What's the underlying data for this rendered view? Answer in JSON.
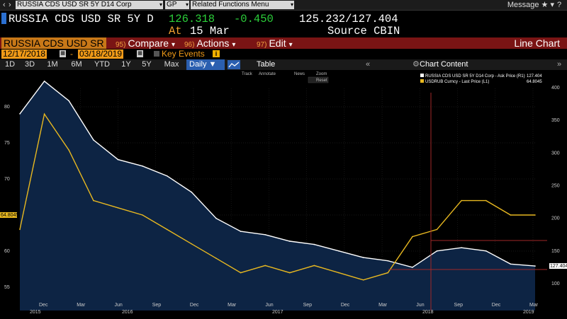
{
  "command_bar": {
    "security": "RUSSIA CDS USD SR 5Y D14 Corp",
    "pricing_source": "GP",
    "related": "Related Functions Menu",
    "message": "Message"
  },
  "quote": {
    "ticker": "RUSSIA CDS USD SR 5Y D",
    "last": "126.318",
    "change": "-0.450",
    "range": "125.232/127.404",
    "at_label": "At",
    "date": "15 Mar",
    "source": "Source CBIN"
  },
  "action_bar": {
    "name": "RUSSIA CDS USD SR",
    "compare_num": "95)",
    "compare": "Compare",
    "actions_num": "96)",
    "actions": "Actions",
    "edit_num": "97)",
    "edit": "Edit",
    "view": "Line Chart"
  },
  "dates": {
    "start": "12/17/2018",
    "end": "03/18/2019",
    "separator": "-",
    "key_events": "Key Events"
  },
  "ranges": [
    "1D",
    "3D",
    "1M",
    "6M",
    "YTD",
    "1Y",
    "5Y",
    "Max"
  ],
  "frequency": "Daily",
  "table_tab": "Table",
  "chart_content": "Chart Content",
  "tools": {
    "track": "Track",
    "annotate": "Annotate",
    "news": "News",
    "zoom": "Zoom",
    "reset": "Reset"
  },
  "colors": {
    "cds": "#ffffff",
    "fx": "#e8b820",
    "area": "#0d2444",
    "cursor": "#c03030"
  },
  "chart_data": {
    "type": "line",
    "x": [
      "2015-10",
      "2015-12",
      "2016-02",
      "2016-04",
      "2016-06",
      "2016-08",
      "2016-10",
      "2016-12",
      "2017-02",
      "2017-04",
      "2017-06",
      "2017-08",
      "2017-10",
      "2017-12",
      "2018-02",
      "2018-04",
      "2018-06",
      "2018-08",
      "2018-10",
      "2018-12",
      "2019-02",
      "2019-03"
    ],
    "series": [
      {
        "name": "RUSSIA CDS USD SR 5Y D14 Corp - Ask Price (R1)",
        "last": "127.404",
        "axis": "right",
        "values": [
          360,
          410,
          380,
          320,
          290,
          280,
          265,
          240,
          200,
          180,
          175,
          165,
          160,
          150,
          140,
          135,
          125,
          150,
          155,
          150,
          130,
          127
        ]
      },
      {
        "name": "USDRUB Curncy - Last Price (L1)",
        "last": "64.8045",
        "axis": "left",
        "values": [
          63,
          79,
          74,
          67,
          66,
          65,
          63,
          61,
          59,
          57,
          58,
          57,
          58,
          57,
          56,
          57,
          62,
          63,
          67,
          67,
          65,
          65
        ]
      }
    ],
    "left_axis": {
      "ticks": [
        55,
        60,
        65,
        70,
        75,
        80
      ],
      "current_label": "64.8045"
    },
    "right_axis": {
      "ticks": [
        100,
        150,
        200,
        250,
        300,
        350,
        400
      ],
      "current_label": "127.404"
    },
    "x_tick_labels": [
      "Dec",
      "Mar",
      "Jun",
      "Sep",
      "Dec",
      "Mar",
      "Jun",
      "Sep",
      "Dec",
      "Mar",
      "Jun",
      "Sep",
      "Dec",
      "Mar"
    ],
    "year_labels": [
      "2015",
      "2016",
      "2017",
      "2018",
      "2019"
    ]
  }
}
